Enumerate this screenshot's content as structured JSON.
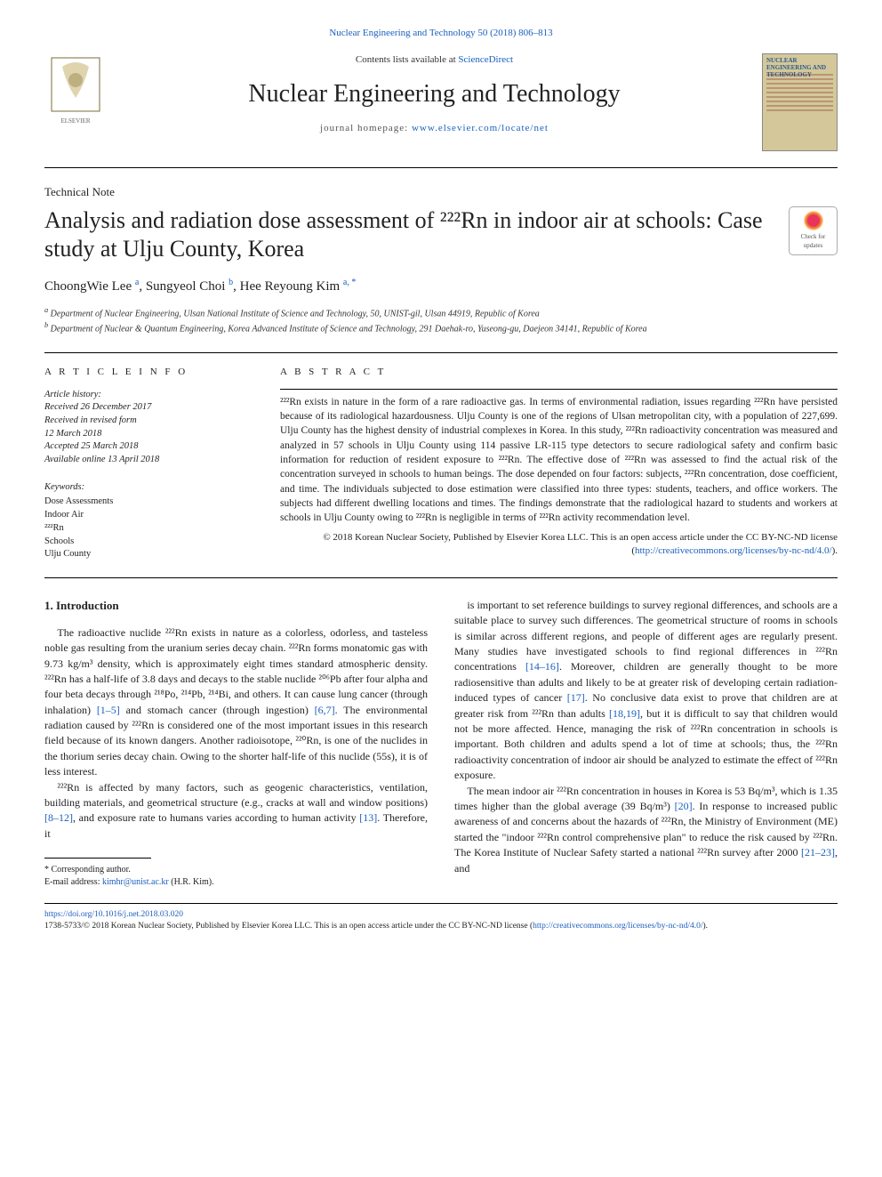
{
  "top_link": "Nuclear Engineering and Technology 50 (2018) 806–813",
  "header": {
    "lists_text": "Contents lists available at ",
    "lists_link": "ScienceDirect",
    "journal": "Nuclear Engineering and Technology",
    "homepage_label": "journal homepage: ",
    "homepage_url": "www.elsevier.com/locate/net",
    "cover_title": "NUCLEAR ENGINEERING AND TECHNOLOGY"
  },
  "article_type": "Technical Note",
  "title": "Analysis and radiation dose assessment of ²²²Rn in indoor air at schools: Case study at Ulju County, Korea",
  "crossmark": {
    "line1": "Check for",
    "line2": "updates"
  },
  "authors_html": "ChoongWie Lee <sup>a</sup>, Sungyeol Choi <sup>b</sup>, Hee Reyoung Kim <sup>a, *</sup>",
  "affils": {
    "a": "Department of Nuclear Engineering, Ulsan National Institute of Science and Technology, 50, UNIST-gil, Ulsan 44919, Republic of Korea",
    "b": "Department of Nuclear & Quantum Engineering, Korea Advanced Institute of Science and Technology, 291 Daehak-ro, Yuseong-gu, Daejeon 34141, Republic of Korea"
  },
  "info": {
    "heading": "A R T I C L E  I N F O",
    "history_label": "Article history:",
    "history": [
      "Received 26 December 2017",
      "Received in revised form",
      "12 March 2018",
      "Accepted 25 March 2018",
      "Available online 13 April 2018"
    ],
    "kw_label": "Keywords:",
    "keywords": [
      "Dose Assessments",
      "Indoor Air",
      "²²²Rn",
      "Schools",
      "Ulju County"
    ]
  },
  "abstract": {
    "heading": "A B S T R A C T",
    "body": "²²²Rn exists in nature in the form of a rare radioactive gas. In terms of environmental radiation, issues regarding ²²²Rn have persisted because of its radiological hazardousness. Ulju County is one of the regions of Ulsan metropolitan city, with a population of 227,699. Ulju County has the highest density of industrial complexes in Korea. In this study, ²²²Rn radioactivity concentration was measured and analyzed in 57 schools in Ulju County using 114 passive LR-115 type detectors to secure radiological safety and confirm basic information for reduction of resident exposure to ²²²Rn. The effective dose of ²²²Rn was assessed to find the actual risk of the concentration surveyed in schools to human beings. The dose depended on four factors: subjects, ²²²Rn concentration, dose coefficient, and time. The individuals subjected to dose estimation were classified into three types: students, teachers, and office workers. The subjects had different dwelling locations and times. The findings demonstrate that the radiological hazard to students and workers at schools in Ulju County owing to ²²²Rn is negligible in terms of ²²²Rn activity recommendation level.",
    "copyright": "© 2018 Korean Nuclear Society, Published by Elsevier Korea LLC. This is an open access article under the CC BY-NC-ND license (",
    "cc_url": "http://creativecommons.org/licenses/by-nc-nd/4.0/",
    "cc_close": ")."
  },
  "section1": {
    "heading": "1. Introduction",
    "left_paras": [
      "The radioactive nuclide ²²²Rn exists in nature as a colorless, odorless, and tasteless noble gas resulting from the uranium series decay chain. ²²²Rn forms monatomic gas with 9.73 kg/m³ density, which is approximately eight times standard atmospheric density. ²²²Rn has a half-life of 3.8 days and decays to the stable nuclide ²⁰⁶Pb after four alpha and four beta decays through ²¹⁸Po, ²¹⁴Pb, ²¹⁴Bi, and others. It can cause lung cancer (through inhalation) <span class=\"ref\">[1–5]</span> and stomach cancer (through ingestion) <span class=\"ref\">[6,7]</span>. The environmental radiation caused by ²²²Rn is considered one of the most important issues in this research field because of its known dangers. Another radioisotope, ²²⁰Rn, is one of the nuclides in the thorium series decay chain. Owing to the shorter half-life of this nuclide (55s), it is of less interest.",
      "²²²Rn is affected by many factors, such as geogenic characteristics, ventilation, building materials, and geometrical structure (e.g., cracks at wall and window positions) <span class=\"ref\">[8–12]</span>, and exposure rate to humans varies according to human activity <span class=\"ref\">[13]</span>. Therefore, it"
    ],
    "right_paras": [
      "is important to set reference buildings to survey regional differences, and schools are a suitable place to survey such differences. The geometrical structure of rooms in schools is similar across different regions, and people of different ages are regularly present. Many studies have investigated schools to find regional differences in ²²²Rn concentrations <span class=\"ref\">[14–16]</span>. Moreover, children are generally thought to be more radiosensitive than adults and likely to be at greater risk of developing certain radiation-induced types of cancer <span class=\"ref\">[17]</span>. No conclusive data exist to prove that children are at greater risk from ²²²Rn than adults <span class=\"ref\">[18,19]</span>, but it is difficult to say that children would not be more affected. Hence, managing the risk of ²²²Rn concentration in schools is important. Both children and adults spend a lot of time at schools; thus, the ²²²Rn radioactivity concentration of indoor air should be analyzed to estimate the effect of ²²²Rn exposure.",
      "The mean indoor air ²²²Rn concentration in houses in Korea is 53 Bq/m³, which is 1.35 times higher than the global average (39 Bq/m³) <span class=\"ref\">[20]</span>. In response to increased public awareness of and concerns about the hazards of ²²²Rn, the Ministry of Environment (ME) started the \"indoor ²²²Rn control comprehensive plan\" to reduce the risk caused by ²²²Rn. The Korea Institute of Nuclear Safety started a national ²²²Rn survey after 2000 <span class=\"ref\">[21–23]</span>, and"
    ]
  },
  "footnote": {
    "corr": "* Corresponding author.",
    "email_label": "E-mail address: ",
    "email": "kimhr@unist.ac.kr",
    "email_tail": " (H.R. Kim)."
  },
  "bottom": {
    "doi": "https://doi.org/10.1016/j.net.2018.03.020",
    "pub": "1738-5733/© 2018 Korean Nuclear Society, Published by Elsevier Korea LLC. This is an open access article under the CC BY-NC-ND license (",
    "cc_url": "http://creativecommons.org/licenses/by-nc-nd/4.0/",
    "cc_close": ")."
  },
  "colors": {
    "link": "#1a5fbf",
    "text": "#222222",
    "border": "#000000",
    "cover_bg": "#d4c89a"
  }
}
